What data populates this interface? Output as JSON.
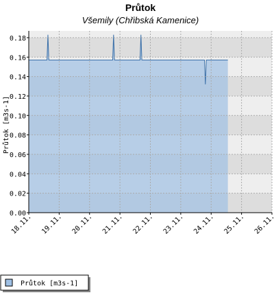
{
  "chart_data": {
    "type": "area",
    "title": "Průtok",
    "subtitle": "Všemily (Chřibská Kamenice)",
    "y_label": "Průtok [m3s-1]",
    "xlim": [
      18,
      26
    ],
    "xticks": [
      {
        "value": 18,
        "label": "18.11."
      },
      {
        "value": 19,
        "label": "19.11."
      },
      {
        "value": 20,
        "label": "20.11."
      },
      {
        "value": 21,
        "label": "21.11."
      },
      {
        "value": 22,
        "label": "22.11."
      },
      {
        "value": 23,
        "label": "23.11."
      },
      {
        "value": 24,
        "label": "24.11."
      },
      {
        "value": 25,
        "label": "25.11."
      },
      {
        "value": 26,
        "label": "26.11."
      }
    ],
    "ylim": [
      0,
      0.187
    ],
    "yticks": [
      {
        "value": 0,
        "label": "0.00"
      },
      {
        "value": 0.02,
        "label": "0.02"
      },
      {
        "value": 0.04,
        "label": "0.04"
      },
      {
        "value": 0.06,
        "label": "0.06"
      },
      {
        "value": 0.08,
        "label": "0.08"
      },
      {
        "value": 0.1,
        "label": "0.10"
      },
      {
        "value": 0.12,
        "label": "0.12"
      },
      {
        "value": 0.14,
        "label": "0.14"
      },
      {
        "value": 0.16,
        "label": "0.16"
      },
      {
        "value": 0.18,
        "label": "0.18"
      }
    ],
    "grid": true,
    "series": [
      {
        "name": "Průtok  [m3s-1]",
        "color": "#3a6fa8",
        "fill": "#9fc0e4",
        "x": [
          18.0,
          18.6,
          18.63,
          18.66,
          20.76,
          20.79,
          20.82,
          21.66,
          21.69,
          21.72,
          23.78,
          23.81,
          23.84,
          24.55
        ],
        "values": [
          0.157,
          0.157,
          0.183,
          0.157,
          0.157,
          0.183,
          0.157,
          0.157,
          0.183,
          0.157,
          0.157,
          0.132,
          0.157,
          0.157
        ]
      }
    ]
  }
}
